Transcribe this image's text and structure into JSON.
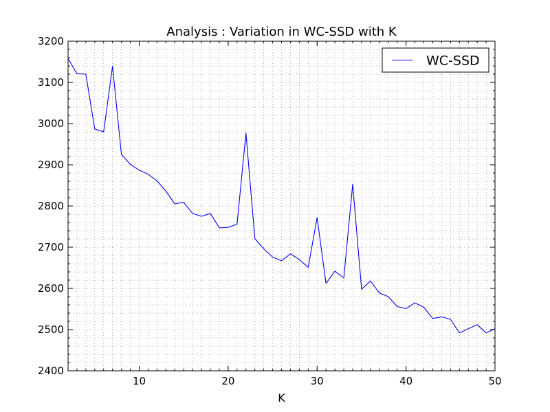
{
  "chart_data": {
    "type": "line",
    "title": "Analysis : Variation in WC-SSD with K",
    "xlabel": "K",
    "ylabel": "",
    "xlim": [
      2,
      50
    ],
    "ylim": [
      2400,
      3200
    ],
    "grid": true,
    "legend_position": "top-right",
    "x_major_ticks": [
      10,
      20,
      30,
      40,
      50
    ],
    "y_major_ticks": [
      2400,
      2500,
      2600,
      2700,
      2800,
      2900,
      3000,
      3100,
      3200
    ],
    "x_tick_labels": [
      "10",
      "20",
      "30",
      "40",
      "50"
    ],
    "y_tick_labels": [
      "2400",
      "2500",
      "2600",
      "2700",
      "2800",
      "2900",
      "3000",
      "3100",
      "3200"
    ],
    "series": [
      {
        "name": "WC-SSD",
        "color": "#0000ff",
        "x": [
          2,
          3,
          4,
          5,
          6,
          7,
          8,
          9,
          10,
          11,
          12,
          13,
          14,
          15,
          16,
          17,
          18,
          19,
          20,
          21,
          22,
          23,
          24,
          25,
          26,
          27,
          28,
          29,
          30,
          31,
          32,
          33,
          34,
          35,
          36,
          37,
          38,
          39,
          40,
          41,
          42,
          43,
          44,
          45,
          46,
          47,
          48,
          49,
          50
        ],
        "y": [
          3158,
          3121,
          3120,
          2987,
          2980,
          3139,
          2925,
          2901,
          2887,
          2877,
          2861,
          2836,
          2805,
          2809,
          2782,
          2775,
          2782,
          2747,
          2748,
          2756,
          2977,
          2721,
          2696,
          2676,
          2667,
          2684,
          2670,
          2651,
          2772,
          2612,
          2642,
          2625,
          2853,
          2598,
          2618,
          2589,
          2580,
          2556,
          2551,
          2565,
          2554,
          2527,
          2531,
          2525,
          2492,
          2502,
          2512,
          2492,
          2502
        ]
      }
    ]
  }
}
